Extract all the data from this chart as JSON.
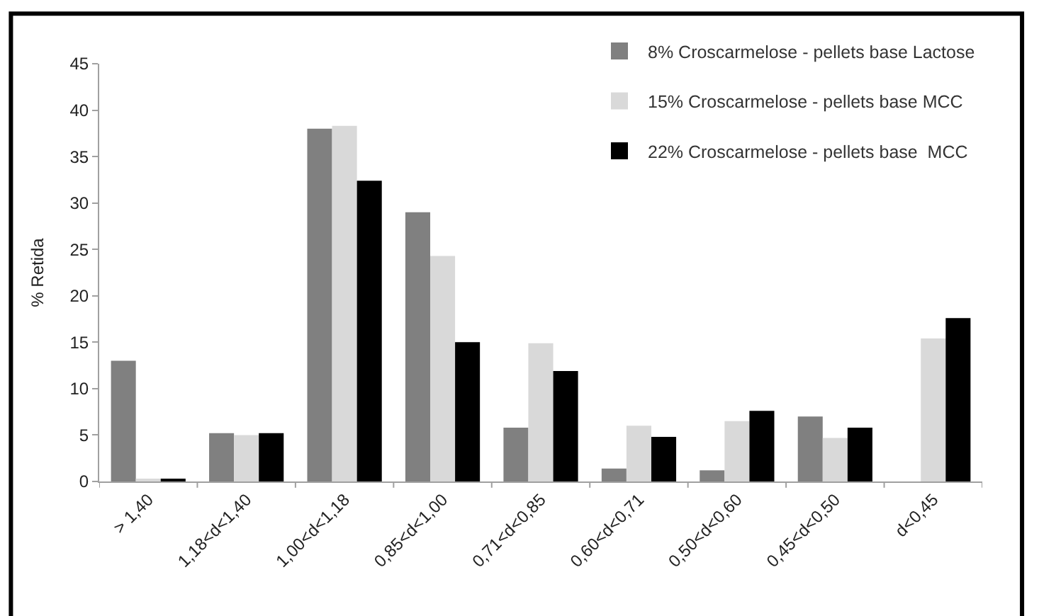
{
  "chart_data": {
    "type": "bar",
    "ylabel": "% Retida",
    "categories": [
      "> 1,40",
      "1,18<d<1,40",
      "1,00<d<1,18",
      "0,85<d<1,00",
      "0,71<d<0,85",
      "0,60<d<0,71",
      "0,50<d<0,60",
      "0,45<d<0,50",
      "d<0,45"
    ],
    "series": [
      {
        "name": "8% Croscarmelose - pellets base Lactose",
        "color": "#808080",
        "values": [
          13,
          5.2,
          38,
          29,
          5.8,
          1.4,
          1.2,
          7,
          0
        ]
      },
      {
        "name": "15% Croscarmelose - pellets base MCC",
        "color": "#d9d9d9",
        "values": [
          0.3,
          5,
          38.3,
          24.3,
          14.9,
          6,
          6.5,
          4.7,
          15.4
        ]
      },
      {
        "name": "22% Croscarmelose - pellets base  MCC",
        "color": "#000000",
        "values": [
          0.3,
          5.2,
          32.4,
          15,
          11.9,
          4.8,
          7.6,
          5.8,
          17.6
        ]
      }
    ],
    "ylim": [
      0,
      45
    ],
    "yticks": [
      0,
      5,
      10,
      15,
      20,
      25,
      30,
      35,
      40,
      45
    ],
    "legend": "top right"
  }
}
